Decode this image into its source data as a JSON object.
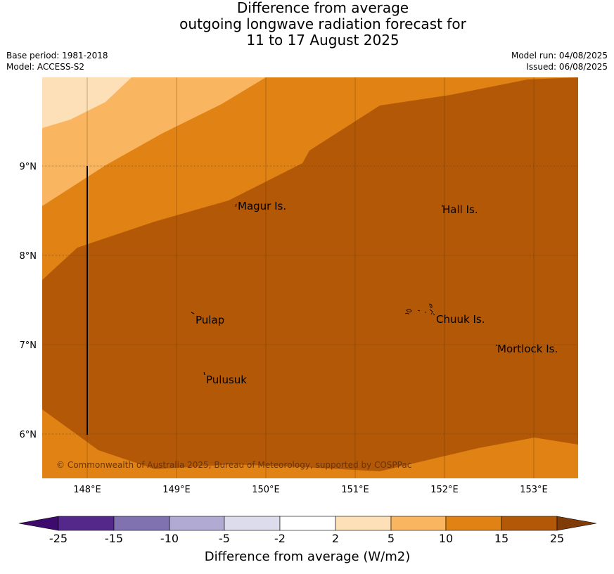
{
  "title_lines": [
    "Difference from average",
    "outgoing longwave radiation forecast for",
    "11 to 17 August 2025"
  ],
  "meta_left": [
    "Base period: 1981-2018",
    "Model: ACCESS-S2"
  ],
  "meta_right": [
    "Model run: 04/08/2025",
    "Issued: 06/08/2025"
  ],
  "map": {
    "lon_labels": [
      "148°E",
      "149°E",
      "150°E",
      "151°E",
      "152°E",
      "153°E"
    ],
    "lat_labels": [
      "9°N",
      "8°N",
      "7°N",
      "6°N"
    ],
    "places": {
      "magur": "Magur Is.",
      "hall": "Hall Is.",
      "pulap": "Pulap",
      "chuuk": "Chuuk Is.",
      "pulusuk": "Pulusuk",
      "mortlock": "Mortlock Is."
    },
    "copyright": "© Commonwealth of Australia 2025, Bureau of Meteorology, supported by COSPPac"
  },
  "colorbar": {
    "title": "Difference from average (W/m2)",
    "labels": [
      "-25",
      "-15",
      "-10",
      "-5",
      "-2",
      "2",
      "5",
      "10",
      "15",
      "25"
    ],
    "colors": [
      "#3f0a6e",
      "#54288a",
      "#8072b0",
      "#b1abd3",
      "#dcdced",
      "#ffffff",
      "#fde0b7",
      "#f9b55f",
      "#e08214",
      "#b35806",
      "#7f3b08"
    ]
  }
}
